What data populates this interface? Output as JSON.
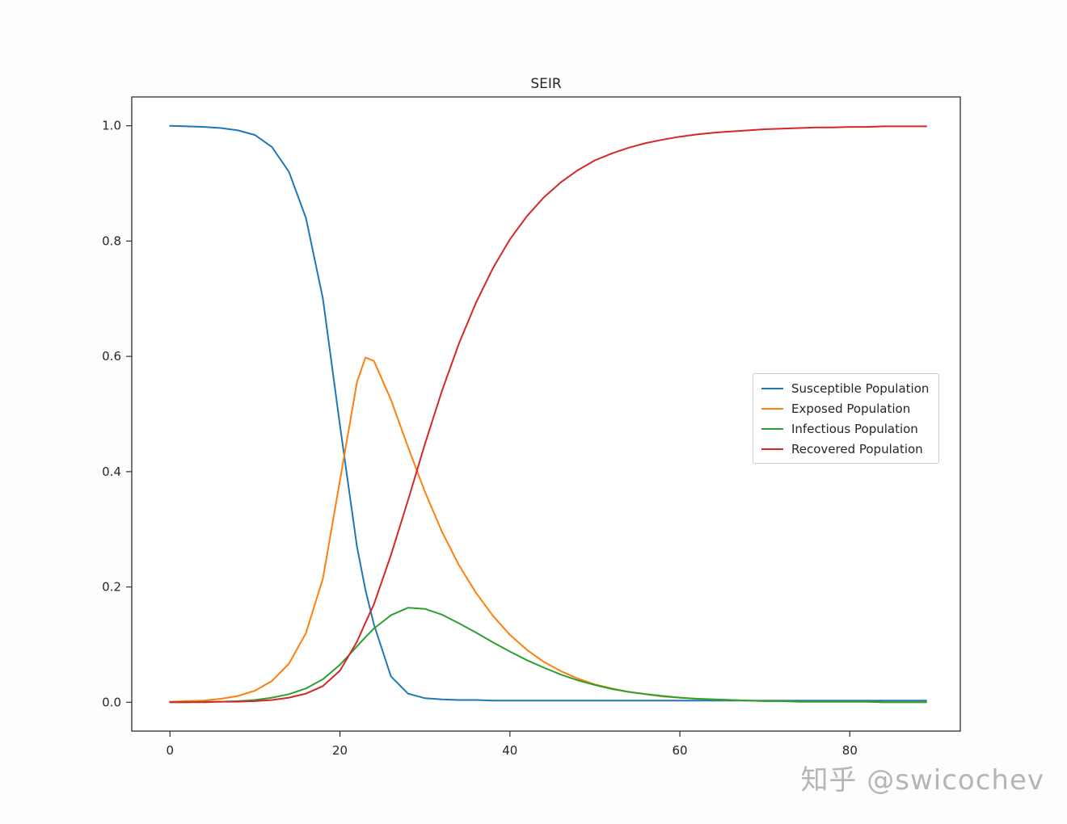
{
  "watermark": "知乎 @swicochev",
  "chart_data": {
    "type": "line",
    "title": "SEIR",
    "xlabel": "",
    "ylabel": "",
    "xlim": [
      -4.5,
      93
    ],
    "ylim": [
      -0.05,
      1.05
    ],
    "grid": false,
    "legend_position": "center right",
    "xticks": [
      0,
      20,
      40,
      60,
      80
    ],
    "yticks": [
      "0.0",
      "0.2",
      "0.4",
      "0.6",
      "0.8",
      "1.0"
    ],
    "x": [
      0,
      2,
      4,
      6,
      8,
      10,
      12,
      14,
      16,
      18,
      20,
      22,
      23,
      24,
      26,
      28,
      30,
      32,
      34,
      36,
      38,
      40,
      42,
      44,
      46,
      48,
      50,
      52,
      54,
      56,
      58,
      60,
      62,
      64,
      66,
      68,
      70,
      72,
      74,
      76,
      78,
      80,
      82,
      84,
      86,
      88,
      89
    ],
    "series": [
      {
        "name": "Susceptible Population",
        "color": "#1f77b4",
        "values": [
          1.0,
          0.999,
          0.998,
          0.996,
          0.992,
          0.984,
          0.963,
          0.92,
          0.84,
          0.7,
          0.48,
          0.27,
          0.195,
          0.135,
          0.045,
          0.015,
          0.007,
          0.005,
          0.004,
          0.004,
          0.003,
          0.003,
          0.003,
          0.003,
          0.003,
          0.003,
          0.003,
          0.003,
          0.003,
          0.003,
          0.003,
          0.003,
          0.003,
          0.003,
          0.003,
          0.003,
          0.003,
          0.003,
          0.003,
          0.003,
          0.003,
          0.003,
          0.003,
          0.003,
          0.003,
          0.003,
          0.003
        ]
      },
      {
        "name": "Exposed Population",
        "color": "#ff7f0e",
        "values": [
          0.001,
          0.002,
          0.003,
          0.006,
          0.011,
          0.02,
          0.037,
          0.067,
          0.12,
          0.215,
          0.385,
          0.555,
          0.598,
          0.592,
          0.525,
          0.443,
          0.365,
          0.296,
          0.238,
          0.19,
          0.15,
          0.117,
          0.091,
          0.07,
          0.054,
          0.041,
          0.031,
          0.024,
          0.018,
          0.014,
          0.01,
          0.008,
          0.006,
          0.005,
          0.004,
          0.003,
          0.002,
          0.002,
          0.001,
          0.001,
          0.001,
          0.001,
          0.001,
          0.0,
          0.0,
          0.0,
          0.0
        ]
      },
      {
        "name": "Infectious Population",
        "color": "#2ca02c",
        "values": [
          0.0,
          0.0,
          0.001,
          0.001,
          0.002,
          0.004,
          0.008,
          0.014,
          0.024,
          0.04,
          0.065,
          0.097,
          0.113,
          0.128,
          0.151,
          0.164,
          0.162,
          0.152,
          0.137,
          0.121,
          0.104,
          0.088,
          0.073,
          0.06,
          0.048,
          0.038,
          0.03,
          0.023,
          0.018,
          0.014,
          0.011,
          0.008,
          0.006,
          0.005,
          0.004,
          0.003,
          0.002,
          0.002,
          0.001,
          0.001,
          0.001,
          0.001,
          0.001,
          0.0,
          0.0,
          0.0,
          0.0
        ]
      },
      {
        "name": "Recovered Population",
        "color": "#d62728",
        "values": [
          0.0,
          0.0,
          0.0,
          0.001,
          0.001,
          0.002,
          0.004,
          0.008,
          0.015,
          0.028,
          0.055,
          0.105,
          0.138,
          0.17,
          0.255,
          0.35,
          0.448,
          0.54,
          0.622,
          0.693,
          0.753,
          0.803,
          0.843,
          0.876,
          0.902,
          0.923,
          0.94,
          0.952,
          0.962,
          0.97,
          0.976,
          0.981,
          0.985,
          0.988,
          0.99,
          0.992,
          0.994,
          0.995,
          0.996,
          0.997,
          0.997,
          0.998,
          0.998,
          0.999,
          0.999,
          0.999,
          0.999
        ]
      }
    ]
  }
}
